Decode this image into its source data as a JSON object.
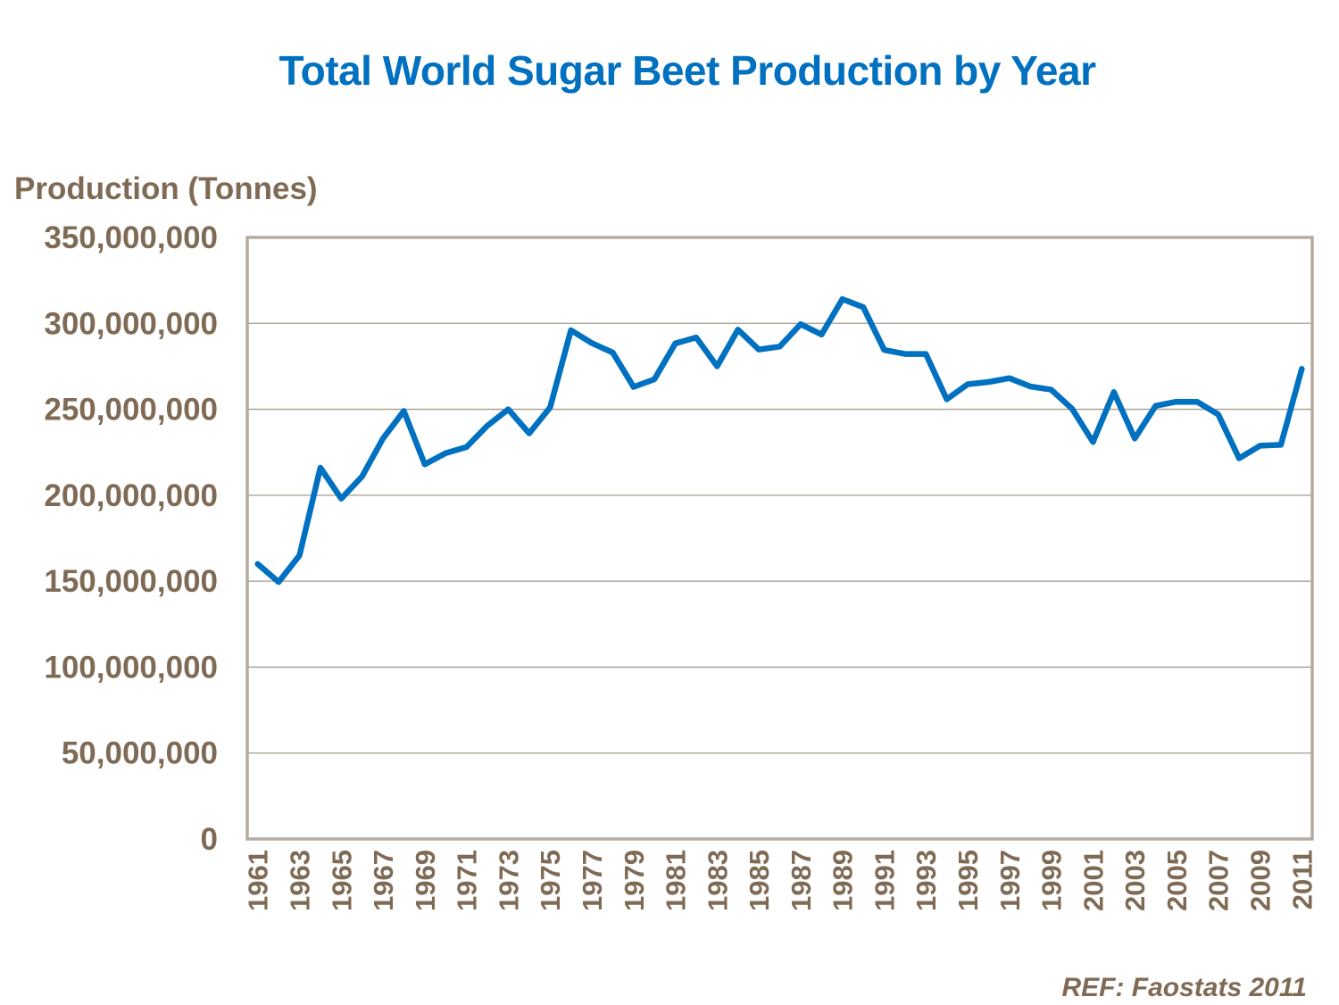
{
  "chart_data": {
    "type": "line",
    "title": "Total World Sugar Beet Production by Year",
    "xlabel": "",
    "ylabel": "Production (Tonnes)",
    "source_note": "REF: Faostats 2011",
    "ylim": [
      0,
      350000000
    ],
    "y_ticks": [
      0,
      50000000,
      100000000,
      150000000,
      200000000,
      250000000,
      300000000,
      350000000
    ],
    "y_tick_labels": [
      "0",
      "50,000,000",
      "100,000,000",
      "150,000,000",
      "200,000,000",
      "250,000,000",
      "300,000,000",
      "350,000,000"
    ],
    "x_tick_labels": [
      "1961",
      "1963",
      "1965",
      "1967",
      "1969",
      "1971",
      "1973",
      "1975",
      "1977",
      "1979",
      "1981",
      "1983",
      "1985",
      "1987",
      "1989",
      "1991",
      "1993",
      "1995",
      "1997",
      "1999",
      "2001",
      "2003",
      "2005",
      "2007",
      "2009",
      "2011"
    ],
    "grid": true,
    "legend": "none",
    "x": [
      1961,
      1962,
      1963,
      1964,
      1965,
      1966,
      1967,
      1968,
      1969,
      1970,
      1971,
      1972,
      1973,
      1974,
      1975,
      1976,
      1977,
      1978,
      1979,
      1980,
      1981,
      1982,
      1983,
      1984,
      1985,
      1986,
      1987,
      1988,
      1989,
      1990,
      1991,
      1992,
      1993,
      1994,
      1995,
      1996,
      1997,
      1998,
      1999,
      2000,
      2001,
      2002,
      2003,
      2004,
      2005,
      2006,
      2007,
      2008,
      2009,
      2010,
      2011
    ],
    "series": [
      {
        "name": "World sugar beet production",
        "color": "#0070c0",
        "values": [
          160000000,
          149500000,
          165000000,
          216000000,
          198000000,
          211000000,
          233000000,
          249000000,
          218000000,
          224500000,
          228000000,
          240500000,
          250000000,
          236000000,
          251000000,
          296000000,
          288500000,
          283000000,
          263000000,
          267500000,
          288300000,
          291800000,
          275000000,
          296300000,
          284800000,
          286500000,
          299500000,
          293500000,
          314100000,
          309400000,
          284500000,
          282200000,
          282200000,
          255800000,
          264600000,
          265900000,
          268100000,
          263300000,
          261400000,
          250300000,
          231000000,
          260000000,
          233000000,
          252000000,
          254400000,
          254300000,
          247000000,
          221500000,
          228800000,
          229300000,
          273500000
        ]
      }
    ]
  }
}
